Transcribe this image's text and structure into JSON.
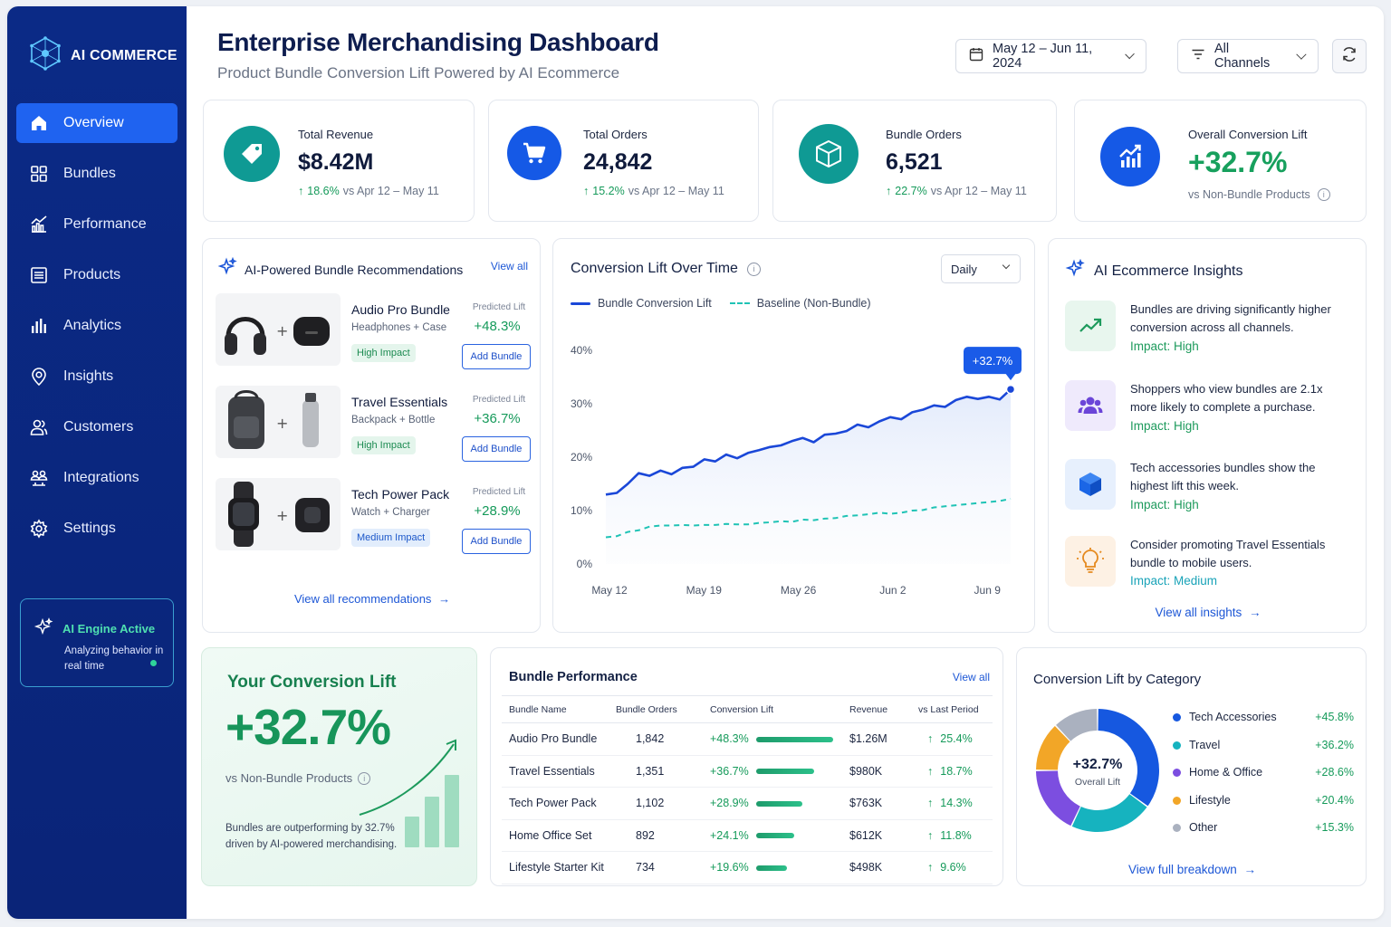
{
  "brand": {
    "name": "AI COMMERCE"
  },
  "nav": [
    {
      "label": "Overview",
      "icon": "home-icon",
      "active": true
    },
    {
      "label": "Bundles",
      "icon": "bundles-icon"
    },
    {
      "label": "Performance",
      "icon": "performance-icon"
    },
    {
      "label": "Products",
      "icon": "products-icon"
    },
    {
      "label": "Analytics",
      "icon": "analytics-icon"
    },
    {
      "label": "Insights",
      "icon": "insights-icon"
    },
    {
      "label": "Customers",
      "icon": "customers-icon"
    },
    {
      "label": "Integrations",
      "icon": "integrations-icon"
    },
    {
      "label": "Settings",
      "icon": "settings-icon"
    }
  ],
  "engine": {
    "title": "AI Engine Active",
    "subtitle": "Analyzing behavior in real time"
  },
  "header": {
    "title": "Enterprise Merchandising Dashboard",
    "subtitle": "Product Bundle Conversion Lift Powered by AI Ecommerce",
    "date_range": "May 12 – Jun 11, 2024",
    "channel": "All Channels"
  },
  "kpis": [
    {
      "label": "Total Revenue",
      "value": "$8.42M",
      "delta": "18.6%",
      "compare": "vs Apr 12 – May 11",
      "icon": "price-tag-icon",
      "color": "#0f9a94"
    },
    {
      "label": "Total Orders",
      "value": "24,842",
      "delta": "15.2%",
      "compare": "vs Apr 12 – May 11",
      "icon": "cart-icon",
      "color": "#1559e6"
    },
    {
      "label": "Bundle Orders",
      "value": "6,521",
      "delta": "22.7%",
      "compare": "vs Apr 12 – May 11",
      "icon": "box-icon",
      "color": "#0f9a94"
    },
    {
      "label": "Overall Conversion Lift",
      "value": "+32.7%",
      "compare": "vs Non-Bundle Products",
      "icon": "trend-chart-icon",
      "color": "#1559e6"
    }
  ],
  "recs": {
    "title": "AI-Powered Bundle Recommendations",
    "view_all": "View all",
    "pred_label": "Predicted Lift",
    "add_label": "Add Bundle",
    "items": [
      {
        "name": "Audio Pro Bundle",
        "sub": "Headphones + Case",
        "lift": "+48.3%",
        "impact": "High Impact",
        "impact_level": "high"
      },
      {
        "name": "Travel Essentials",
        "sub": "Backpack + Bottle",
        "lift": "+36.7%",
        "impact": "High Impact",
        "impact_level": "high"
      },
      {
        "name": "Tech Power Pack",
        "sub": "Watch + Charger",
        "lift": "+28.9%",
        "impact": "Medium Impact",
        "impact_level": "medium"
      }
    ],
    "footer": "View all recommendations"
  },
  "lift_chart": {
    "title": "Conversion Lift Over Time",
    "period": "Daily",
    "legend_bundle": "Bundle Conversion Lift",
    "legend_baseline": "Baseline (Non-Bundle)",
    "callout": "+32.7%",
    "y_ticks": [
      "40%",
      "30%",
      "20%",
      "10%",
      "0%"
    ],
    "x_ticks": [
      "May 12",
      "May 19",
      "May 26",
      "Jun 2",
      "Jun 9"
    ]
  },
  "chart_data": {
    "type": "line",
    "ylim": [
      0,
      40
    ],
    "x_labels": [
      "May 12",
      "May 19",
      "May 26",
      "Jun 2",
      "Jun 9"
    ],
    "series": [
      {
        "name": "Bundle Conversion Lift",
        "color": "#1a47d8",
        "values": [
          13,
          13.3,
          15,
          17,
          16.5,
          17.5,
          16.8,
          18,
          18.2,
          19.6,
          19.2,
          20.5,
          19.8,
          20.8,
          21.3,
          21.9,
          22.2,
          23,
          23.6,
          22.8,
          24.2,
          24.4,
          24.9,
          26.1,
          25.6,
          26.7,
          27.5,
          27.1,
          28.4,
          28.9,
          29.7,
          29.4,
          30.7,
          31.3,
          30.9,
          31.3,
          30.8,
          32.7
        ]
      },
      {
        "name": "Baseline (Non-Bundle)",
        "color": "#1fc3b5",
        "values": [
          5,
          5.2,
          6,
          6.3,
          7,
          7.2,
          7.2,
          7.3,
          7.2,
          7.3,
          7.3,
          7.5,
          7.4,
          7.4,
          7.7,
          7.8,
          8,
          7.9,
          8.3,
          8.2,
          8.5,
          8.6,
          9,
          9.1,
          9.3,
          9.6,
          9.4,
          9.6,
          10,
          10.1,
          10.6,
          10.8,
          11,
          11.2,
          11.4,
          11.6,
          11.8,
          12.2
        ]
      }
    ]
  },
  "insights": {
    "title": "AI Ecommerce Insights",
    "items": [
      {
        "text": "Bundles are driving significantly higher conversion across all channels.",
        "impact": "Impact: High",
        "icon": "trend-up-icon",
        "bg": "#e8f6ee",
        "fg": "#1d9a5c",
        "impact_color": "#1d9a5c"
      },
      {
        "text": "Shoppers who view bundles are 2.1x more likely to complete a purchase.",
        "impact": "Impact: High",
        "icon": "users-icon",
        "bg": "#efeafc",
        "fg": "#6b45d8",
        "impact_color": "#1d9a5c"
      },
      {
        "text": "Tech accessories bundles show the highest lift this week.",
        "impact": "Impact: High",
        "icon": "cube-icon",
        "bg": "#e7f0fd",
        "fg": "#1b66e6",
        "impact_color": "#1d9a5c"
      },
      {
        "text": "Consider promoting Travel Essentials bundle to mobile users.",
        "impact": "Impact: Medium",
        "icon": "lightbulb-icon",
        "bg": "#fdf1e4",
        "fg": "#e58a1f",
        "impact_color": "#19a3b8"
      }
    ],
    "footer": "View all insights"
  },
  "your_lift": {
    "title": "Your Conversion Lift",
    "value": "+32.7%",
    "compare": "vs Non-Bundle Products",
    "note": "Bundles are outperforming by 32.7% driven by AI-powered merchandising."
  },
  "bundle_perf": {
    "title": "Bundle Performance",
    "view_all": "View all",
    "columns": [
      "Bundle Name",
      "Bundle Orders",
      "Conversion Lift",
      "Revenue",
      "vs Last Period"
    ],
    "rows": [
      {
        "name": "Audio Pro Bundle",
        "orders": "1,842",
        "lift": "+48.3%",
        "lift_value": 48.3,
        "revenue": "$1.26M",
        "delta": "25.4%"
      },
      {
        "name": "Travel Essentials",
        "orders": "1,351",
        "lift": "+36.7%",
        "lift_value": 36.7,
        "revenue": "$980K",
        "delta": "18.7%"
      },
      {
        "name": "Tech Power Pack",
        "orders": "1,102",
        "lift": "+28.9%",
        "lift_value": 28.9,
        "revenue": "$763K",
        "delta": "14.3%"
      },
      {
        "name": "Home Office Set",
        "orders": "892",
        "lift": "+24.1%",
        "lift_value": 24.1,
        "revenue": "$612K",
        "delta": "11.8%"
      },
      {
        "name": "Lifestyle Starter Kit",
        "orders": "734",
        "lift": "+19.6%",
        "lift_value": 19.6,
        "revenue": "$498K",
        "delta": "9.6%"
      }
    ]
  },
  "category": {
    "title": "Conversion Lift by Category",
    "center_value": "+32.7%",
    "center_label": "Overall Lift",
    "items": [
      {
        "name": "Tech Accessories",
        "value": "+45.8%",
        "share": 0.35,
        "color": "#1658e0"
      },
      {
        "name": "Travel",
        "value": "+36.2%",
        "share": 0.22,
        "color": "#16b3bf"
      },
      {
        "name": "Home & Office",
        "value": "+28.6%",
        "share": 0.18,
        "color": "#7c4ee0"
      },
      {
        "name": "Lifestyle",
        "value": "+20.4%",
        "share": 0.13,
        "color": "#f2a627"
      },
      {
        "name": "Other",
        "value": "+15.3%",
        "share": 0.12,
        "color": "#aab1bf"
      }
    ],
    "footer": "View full breakdown"
  }
}
